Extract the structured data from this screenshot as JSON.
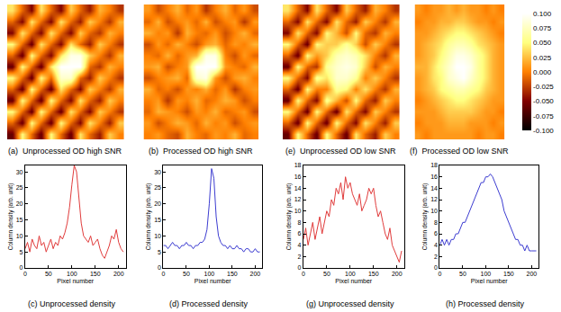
{
  "chart_data": [
    {
      "type": "heatmap",
      "title": "(a)  Unprocessed OD high SNR",
      "tick_labels": false,
      "color_range": [
        -0.1,
        0.1
      ],
      "cells": [
        [
          0.04,
          -0.01,
          -0.05,
          0.04,
          -0.01,
          -0.05,
          0.03,
          -0.01,
          -0.04,
          0.02,
          0.0,
          -0.03
        ],
        [
          -0.01,
          -0.05,
          0.04,
          -0.01,
          -0.05,
          0.04,
          -0.01,
          -0.04,
          0.03,
          0.0,
          -0.03,
          0.02
        ],
        [
          -0.05,
          0.04,
          -0.01,
          -0.05,
          0.04,
          -0.01,
          -0.05,
          0.03,
          -0.01,
          -0.03,
          0.02,
          0.0
        ],
        [
          0.05,
          -0.01,
          -0.06,
          0.04,
          -0.01,
          -0.05,
          0.04,
          -0.01,
          -0.04,
          0.03,
          0.0,
          -0.03
        ],
        [
          -0.01,
          -0.06,
          0.05,
          -0.01,
          -0.05,
          0.04,
          0.09,
          0.09,
          0.03,
          0.0,
          -0.03,
          0.02
        ],
        [
          -0.06,
          0.05,
          -0.01,
          -0.06,
          0.04,
          0.1,
          0.1,
          0.1,
          -0.01,
          -0.03,
          0.02,
          0.0
        ],
        [
          0.05,
          -0.01,
          -0.06,
          0.05,
          -0.01,
          0.08,
          0.08,
          -0.01,
          -0.04,
          0.03,
          0.0,
          -0.03
        ],
        [
          -0.01,
          -0.06,
          0.05,
          -0.01,
          -0.06,
          0.04,
          -0.01,
          -0.05,
          0.03,
          0.0,
          -0.03,
          0.02
        ],
        [
          -0.06,
          0.05,
          -0.01,
          -0.06,
          0.05,
          -0.01,
          -0.05,
          0.04,
          -0.01,
          -0.04,
          0.03,
          0.0
        ],
        [
          0.05,
          -0.01,
          -0.06,
          0.05,
          -0.01,
          -0.06,
          0.04,
          -0.01,
          -0.05,
          0.03,
          0.0,
          -0.03
        ],
        [
          -0.01,
          -0.06,
          0.05,
          -0.01,
          -0.06,
          0.05,
          -0.01,
          -0.05,
          0.04,
          0.0,
          -0.04,
          0.03
        ],
        [
          -0.06,
          0.05,
          -0.01,
          -0.06,
          0.05,
          -0.01,
          -0.06,
          0.04,
          -0.01,
          -0.04,
          0.03,
          0.0
        ]
      ]
    },
    {
      "type": "heatmap",
      "title": "(b)  Processed OD high SNR",
      "tick_labels": false,
      "color_range": [
        -0.1,
        0.1
      ],
      "cells": [
        [
          0.01,
          -0.02,
          0.0,
          0.02,
          -0.01,
          0.01,
          -0.03,
          0.0,
          0.02,
          -0.01,
          0.01,
          -0.02
        ],
        [
          -0.01,
          0.02,
          -0.02,
          0.0,
          0.01,
          -0.01,
          0.02,
          -0.02,
          0.0,
          0.01,
          -0.03,
          0.01
        ],
        [
          0.02,
          0.0,
          0.01,
          -0.03,
          0.02,
          0.0,
          -0.01,
          0.01,
          -0.02,
          0.0,
          0.02,
          -0.01
        ],
        [
          -0.02,
          0.01,
          -0.01,
          0.02,
          0.0,
          -0.02,
          0.01,
          0.02,
          -0.01,
          0.01,
          0.0,
          0.02
        ],
        [
          0.0,
          -0.01,
          0.02,
          -0.01,
          0.01,
          0.02,
          0.09,
          0.09,
          0.0,
          -0.02,
          0.01,
          -0.01
        ],
        [
          0.01,
          0.02,
          -0.02,
          0.0,
          0.01,
          0.1,
          0.1,
          0.1,
          0.01,
          0.0,
          -0.01,
          0.02
        ],
        [
          -0.02,
          0.0,
          0.01,
          0.02,
          -0.01,
          0.08,
          0.09,
          0.01,
          -0.02,
          0.01,
          0.02,
          0.0
        ],
        [
          0.02,
          -0.01,
          0.0,
          -0.02,
          0.01,
          0.0,
          0.02,
          -0.01,
          0.01,
          -0.03,
          0.0,
          0.01
        ],
        [
          0.0,
          0.01,
          -0.03,
          0.01,
          0.0,
          0.02,
          -0.01,
          0.0,
          0.02,
          0.01,
          -0.02,
          0.0
        ],
        [
          -0.01,
          0.02,
          0.01,
          0.0,
          -0.02,
          0.01,
          0.0,
          0.02,
          -0.01,
          0.0,
          0.01,
          -0.02
        ],
        [
          0.01,
          -0.02,
          0.0,
          0.02,
          0.01,
          -0.01,
          0.02,
          0.0,
          0.01,
          -0.02,
          0.0,
          0.01
        ],
        [
          0.0,
          0.01,
          -0.01,
          -0.02,
          0.02,
          0.0,
          -0.01,
          0.01,
          0.0,
          0.02,
          -0.01,
          0.0
        ]
      ]
    },
    {
      "type": "line",
      "title": "(c) Unprocessed density",
      "xlabel": "Pixel number",
      "ylabel": "Column density (arb. unit)",
      "color": "#e03c3c",
      "grid": false,
      "xlim": [
        0,
        215
      ],
      "xticks": [
        0,
        50,
        100,
        150,
        200
      ],
      "ylim": [
        0,
        32
      ],
      "yticks": [
        0,
        5,
        10,
        15,
        20,
        25,
        30
      ],
      "x": [
        0,
        5,
        10,
        15,
        20,
        25,
        30,
        35,
        40,
        45,
        50,
        55,
        60,
        65,
        70,
        75,
        80,
        85,
        90,
        95,
        100,
        105,
        110,
        115,
        120,
        125,
        130,
        135,
        140,
        145,
        150,
        155,
        160,
        165,
        170,
        175,
        180,
        185,
        190,
        195,
        200,
        205,
        210
      ],
      "values": [
        6,
        8,
        5,
        9,
        7,
        6,
        10,
        7,
        8,
        5,
        7,
        9,
        6,
        8,
        7,
        10,
        9,
        11,
        14,
        19,
        26,
        32,
        30,
        22,
        14,
        10,
        9,
        8,
        10,
        7,
        8,
        9,
        6,
        4,
        3,
        5,
        7,
        10,
        9,
        12,
        8,
        6,
        5
      ]
    },
    {
      "type": "line",
      "title": "(d) Processed density",
      "xlabel": "Pixel number",
      "ylabel": "Column density (arb. unit)",
      "color": "#3c3cd0",
      "grid": false,
      "xlim": [
        0,
        215
      ],
      "xticks": [
        0,
        50,
        100,
        150,
        200
      ],
      "ylim": [
        0,
        32
      ],
      "yticks": [
        0,
        5,
        10,
        15,
        20,
        25,
        30
      ],
      "x": [
        0,
        5,
        10,
        15,
        20,
        25,
        30,
        35,
        40,
        45,
        50,
        55,
        60,
        65,
        70,
        75,
        80,
        85,
        90,
        95,
        100,
        105,
        110,
        115,
        120,
        125,
        130,
        135,
        140,
        145,
        150,
        155,
        160,
        165,
        170,
        175,
        180,
        185,
        190,
        195,
        200,
        205,
        210
      ],
      "values": [
        7,
        7,
        6,
        7,
        8,
        7,
        7,
        6,
        7,
        7,
        8,
        7,
        7,
        6,
        7,
        7,
        8,
        8,
        9,
        12,
        20,
        31,
        28,
        16,
        10,
        8,
        7,
        7,
        6,
        7,
        6,
        6,
        7,
        6,
        6,
        5,
        6,
        6,
        5,
        5,
        6,
        5,
        5
      ]
    },
    {
      "type": "heatmap",
      "title": "(e)  Unprocessed OD low SNR",
      "tick_labels": false,
      "color_range": [
        -0.1,
        0.1
      ],
      "cells": [
        [
          0.04,
          -0.01,
          -0.05,
          0.04,
          -0.01,
          -0.05,
          0.03,
          -0.01,
          -0.04,
          0.02,
          0.0,
          -0.03
        ],
        [
          -0.01,
          -0.05,
          0.04,
          -0.01,
          -0.05,
          0.04,
          -0.01,
          -0.04,
          0.03,
          0.0,
          -0.03,
          0.02
        ],
        [
          -0.05,
          0.04,
          -0.01,
          -0.05,
          0.05,
          0.02,
          -0.02,
          0.05,
          -0.01,
          -0.03,
          0.02,
          0.0
        ],
        [
          0.05,
          -0.01,
          -0.06,
          0.05,
          0.03,
          0.03,
          0.06,
          0.03,
          -0.02,
          0.03,
          0.0,
          -0.03
        ],
        [
          -0.01,
          -0.06,
          0.05,
          0.01,
          0.03,
          0.07,
          0.08,
          0.07,
          0.04,
          0.0,
          -0.03,
          0.02
        ],
        [
          -0.06,
          0.05,
          -0.01,
          -0.03,
          0.06,
          0.08,
          0.09,
          0.08,
          0.03,
          -0.02,
          0.02,
          0.0
        ],
        [
          0.05,
          -0.01,
          -0.05,
          0.06,
          0.04,
          0.08,
          0.08,
          0.06,
          0.0,
          0.03,
          0.0,
          -0.03
        ],
        [
          -0.01,
          -0.06,
          0.05,
          0.0,
          0.0,
          0.06,
          0.05,
          0.0,
          0.04,
          0.0,
          -0.03,
          0.02
        ],
        [
          -0.06,
          0.05,
          -0.01,
          -0.05,
          0.06,
          0.02,
          -0.02,
          0.05,
          -0.01,
          -0.04,
          0.03,
          0.0
        ],
        [
          0.05,
          -0.01,
          -0.06,
          0.05,
          -0.01,
          -0.06,
          0.04,
          -0.01,
          -0.05,
          0.03,
          0.0,
          -0.03
        ],
        [
          -0.01,
          -0.06,
          0.05,
          -0.01,
          -0.06,
          0.05,
          -0.01,
          -0.05,
          0.04,
          0.0,
          -0.04,
          0.03
        ],
        [
          -0.06,
          0.05,
          -0.01,
          -0.06,
          0.05,
          -0.01,
          -0.06,
          0.04,
          -0.01,
          -0.04,
          0.03,
          0.0
        ]
      ]
    },
    {
      "type": "heatmap",
      "title": "(f)  Processed OD low SNR",
      "tick_labels": false,
      "color_range": [
        -0.1,
        0.1
      ],
      "color_ticks": [
        {
          "value": 0.1,
          "label": "0.100"
        },
        {
          "value": 0.075,
          "label": "0.075"
        },
        {
          "value": 0.05,
          "label": "0.050"
        },
        {
          "value": 0.025,
          "label": "0.025"
        },
        {
          "value": 0,
          "label": "0.000"
        },
        {
          "value": -0.025,
          "label": "-0.025"
        },
        {
          "value": -0.05,
          "label": "-0.050"
        },
        {
          "value": -0.075,
          "label": "-0.075"
        },
        {
          "value": -0.1,
          "label": "-0.100"
        }
      ],
      "cells": [
        [
          0.01,
          0.0,
          0.01,
          0.01,
          0.02,
          0.01,
          0.02,
          0.01,
          0.01,
          0.0,
          0.01,
          0.0
        ],
        [
          0.0,
          0.01,
          0.01,
          0.02,
          0.02,
          0.03,
          0.03,
          0.02,
          0.01,
          0.01,
          0.0,
          0.01
        ],
        [
          0.01,
          0.01,
          0.02,
          0.03,
          0.04,
          0.05,
          0.05,
          0.04,
          0.03,
          0.02,
          0.01,
          0.0
        ],
        [
          0.01,
          0.02,
          0.03,
          0.04,
          0.06,
          0.07,
          0.07,
          0.06,
          0.04,
          0.03,
          0.02,
          0.01
        ],
        [
          0.01,
          0.02,
          0.03,
          0.05,
          0.07,
          0.09,
          0.09,
          0.08,
          0.06,
          0.04,
          0.02,
          0.01
        ],
        [
          0.02,
          0.02,
          0.04,
          0.06,
          0.08,
          0.1,
          0.1,
          0.09,
          0.06,
          0.04,
          0.02,
          0.01
        ],
        [
          0.01,
          0.02,
          0.04,
          0.05,
          0.08,
          0.09,
          0.1,
          0.08,
          0.06,
          0.04,
          0.02,
          0.01
        ],
        [
          0.01,
          0.02,
          0.03,
          0.05,
          0.06,
          0.07,
          0.07,
          0.06,
          0.05,
          0.03,
          0.02,
          0.01
        ],
        [
          0.0,
          0.01,
          0.02,
          0.03,
          0.04,
          0.05,
          0.05,
          0.04,
          0.03,
          0.02,
          0.01,
          0.01
        ],
        [
          0.01,
          0.01,
          0.01,
          0.02,
          0.03,
          0.03,
          0.03,
          0.03,
          0.02,
          0.01,
          0.01,
          0.0
        ],
        [
          0.0,
          0.01,
          0.01,
          0.01,
          0.02,
          0.02,
          0.02,
          0.01,
          0.01,
          0.01,
          0.0,
          0.01
        ],
        [
          0.01,
          0.0,
          0.01,
          0.01,
          0.01,
          0.01,
          0.01,
          0.01,
          0.0,
          0.01,
          0.01,
          0.0
        ]
      ]
    },
    {
      "type": "line",
      "title": "(g) Unprocessed density",
      "xlabel": "Pixel number",
      "ylabel": "Column density (arb. unit)",
      "color": "#e03c3c",
      "grid": false,
      "xlim": [
        0,
        215
      ],
      "xticks": [
        0,
        50,
        100,
        150,
        200
      ],
      "ylim": [
        0,
        18
      ],
      "yticks": [
        0,
        2,
        4,
        6,
        8,
        10,
        12,
        14,
        16,
        18
      ],
      "x": [
        0,
        5,
        10,
        15,
        20,
        25,
        30,
        35,
        40,
        45,
        50,
        55,
        60,
        65,
        70,
        75,
        80,
        85,
        90,
        95,
        100,
        105,
        110,
        115,
        120,
        125,
        130,
        135,
        140,
        145,
        150,
        155,
        160,
        165,
        170,
        175,
        180,
        185,
        190,
        195,
        200,
        205,
        210
      ],
      "values": [
        5,
        7,
        4,
        6,
        8,
        5,
        7,
        9,
        6,
        8,
        10,
        9,
        12,
        11,
        14,
        13,
        15,
        12,
        16,
        14,
        15,
        13,
        12,
        11,
        13,
        10,
        11,
        12,
        14,
        13,
        14,
        11,
        9,
        10,
        8,
        6,
        5,
        7,
        4,
        3,
        2,
        1,
        3
      ]
    },
    {
      "type": "line",
      "title": "(h) Processed density",
      "xlabel": "Pixel number",
      "ylabel": "Column density (arb. unit)",
      "color": "#3c3cd0",
      "grid": false,
      "xlim": [
        0,
        215
      ],
      "xticks": [
        0,
        50,
        100,
        150,
        200
      ],
      "ylim": [
        0,
        18
      ],
      "yticks": [
        0,
        2,
        4,
        6,
        8,
        10,
        12,
        14,
        16,
        18
      ],
      "x": [
        0,
        5,
        10,
        15,
        20,
        25,
        30,
        35,
        40,
        45,
        50,
        55,
        60,
        65,
        70,
        75,
        80,
        85,
        90,
        95,
        100,
        105,
        110,
        115,
        120,
        125,
        130,
        135,
        140,
        145,
        150,
        155,
        160,
        165,
        170,
        175,
        180,
        185,
        190,
        195,
        200,
        205,
        210
      ],
      "values": [
        4,
        5,
        4,
        5,
        4,
        5,
        5,
        6,
        6,
        7,
        8,
        8,
        9,
        10,
        11,
        12,
        13,
        14,
        15,
        15,
        16,
        16,
        16.5,
        16,
        15,
        14,
        13,
        12,
        10,
        9,
        8,
        7,
        6,
        5,
        5,
        4,
        4,
        3,
        4,
        3,
        3,
        3,
        3
      ]
    }
  ]
}
